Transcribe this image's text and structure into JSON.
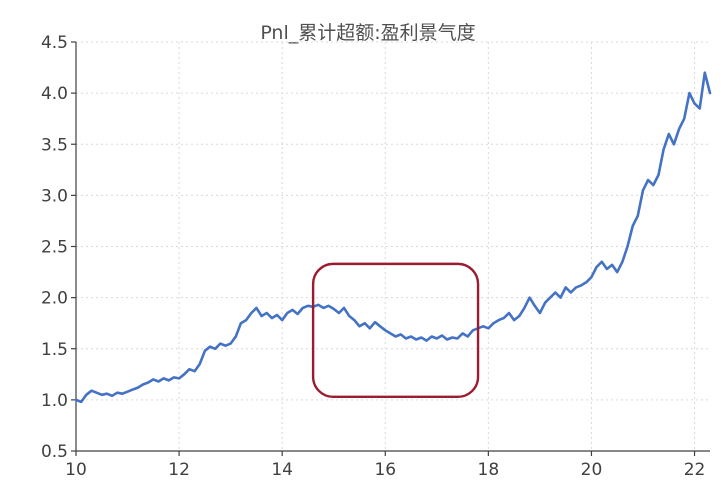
{
  "chart_data": {
    "type": "line",
    "title": "Pnl_累计超额:盈利景气度",
    "xlabel": "",
    "ylabel": "",
    "xlim": [
      10,
      22.3
    ],
    "ylim": [
      0.5,
      4.5
    ],
    "xticks": [
      "10",
      "12",
      "14",
      "16",
      "18",
      "20",
      "22"
    ],
    "yticks": [
      "0.5",
      "1.0",
      "1.5",
      "2.0",
      "2.5",
      "3.0",
      "3.5",
      "4.0",
      "4.5"
    ],
    "grid": true,
    "legend": "none",
    "colors": {
      "line": "#4472C4",
      "highlight_box": "#9B1B30"
    },
    "series": [
      {
        "x": [
          10.0,
          10.1,
          10.2,
          10.3,
          10.4,
          10.5,
          10.6,
          10.7,
          10.8,
          10.9,
          11.0,
          11.1,
          11.2,
          11.3,
          11.4,
          11.5,
          11.6,
          11.7,
          11.8,
          11.9,
          12.0,
          12.1,
          12.2,
          12.3,
          12.4,
          12.5,
          12.6,
          12.7,
          12.8,
          12.9,
          13.0,
          13.1,
          13.2,
          13.3,
          13.4,
          13.5,
          13.6,
          13.7,
          13.8,
          13.9,
          14.0,
          14.1,
          14.2,
          14.3,
          14.4,
          14.5,
          14.6,
          14.7,
          14.8,
          14.9,
          15.0,
          15.1,
          15.2,
          15.3,
          15.4,
          15.5,
          15.6,
          15.7,
          15.8,
          15.9,
          16.0,
          16.1,
          16.2,
          16.3,
          16.4,
          16.5,
          16.6,
          16.7,
          16.8,
          16.9,
          17.0,
          17.1,
          17.2,
          17.3,
          17.4,
          17.5,
          17.6,
          17.7,
          17.8,
          17.9,
          18.0,
          18.1,
          18.2,
          18.3,
          18.4,
          18.5,
          18.6,
          18.7,
          18.8,
          18.9,
          19.0,
          19.1,
          19.2,
          19.3,
          19.4,
          19.5,
          19.6,
          19.7,
          19.8,
          19.9,
          20.0,
          20.1,
          20.2,
          20.3,
          20.4,
          20.5,
          20.6,
          20.7,
          20.8,
          20.9,
          21.0,
          21.1,
          21.2,
          21.3,
          21.4,
          21.5,
          21.6,
          21.7,
          21.8,
          21.9,
          22.0,
          22.1,
          22.2,
          22.3
        ],
        "y": [
          1.0,
          0.98,
          1.05,
          1.09,
          1.07,
          1.05,
          1.06,
          1.04,
          1.07,
          1.06,
          1.08,
          1.1,
          1.12,
          1.15,
          1.17,
          1.2,
          1.18,
          1.21,
          1.19,
          1.22,
          1.21,
          1.25,
          1.3,
          1.28,
          1.35,
          1.48,
          1.52,
          1.5,
          1.55,
          1.53,
          1.55,
          1.62,
          1.75,
          1.78,
          1.85,
          1.9,
          1.82,
          1.85,
          1.8,
          1.83,
          1.78,
          1.85,
          1.88,
          1.84,
          1.9,
          1.92,
          1.91,
          1.93,
          1.9,
          1.92,
          1.89,
          1.85,
          1.9,
          1.82,
          1.78,
          1.72,
          1.75,
          1.7,
          1.76,
          1.72,
          1.68,
          1.65,
          1.62,
          1.64,
          1.6,
          1.62,
          1.59,
          1.61,
          1.58,
          1.62,
          1.6,
          1.63,
          1.59,
          1.61,
          1.6,
          1.65,
          1.62,
          1.68,
          1.7,
          1.72,
          1.7,
          1.75,
          1.78,
          1.8,
          1.85,
          1.78,
          1.82,
          1.9,
          2.0,
          1.92,
          1.85,
          1.95,
          2.0,
          2.05,
          2.0,
          2.1,
          2.05,
          2.1,
          2.12,
          2.15,
          2.2,
          2.3,
          2.35,
          2.28,
          2.32,
          2.25,
          2.35,
          2.5,
          2.7,
          2.8,
          3.05,
          3.15,
          3.1,
          3.2,
          3.45,
          3.6,
          3.5,
          3.65,
          3.75,
          4.0,
          3.9,
          3.85,
          4.2,
          4.0
        ]
      }
    ],
    "annotations": [
      {
        "type": "rounded-box",
        "x_range": [
          14.6,
          17.8
        ],
        "y_range": [
          1.03,
          2.33
        ],
        "color": "#9B1B30"
      }
    ]
  }
}
